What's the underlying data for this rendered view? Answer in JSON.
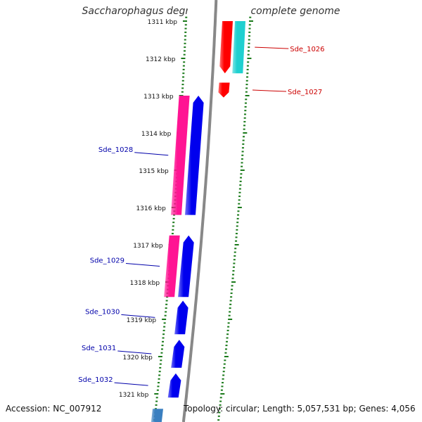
{
  "title": "Saccharophagus degradans 2-40, complete genome",
  "accession": "Accession: NC_007912",
  "topology": "Topology: circular; Length: 5,057,531 bp; Genes: 4,056",
  "ruler_unit": "kbp",
  "ruler": [
    {
      "kbp": 1311,
      "label": "1311 kbp"
    },
    {
      "kbp": 1312,
      "label": "1312 kbp"
    },
    {
      "kbp": 1313,
      "label": "1313 kbp"
    },
    {
      "kbp": 1314,
      "label": "1314 kbp"
    },
    {
      "kbp": 1315,
      "label": "1315 kbp"
    },
    {
      "kbp": 1316,
      "label": "1316 kbp"
    },
    {
      "kbp": 1317,
      "label": "1317 kbp"
    },
    {
      "kbp": 1318,
      "label": "1318 kbp"
    },
    {
      "kbp": 1319,
      "label": "1319 kbp"
    },
    {
      "kbp": 1320,
      "label": "1320 kbp"
    },
    {
      "kbp": 1321,
      "label": "1321 kbp"
    }
  ],
  "colors": {
    "outer_gene": "#ff0000",
    "outer_label": "#cc0000",
    "outer_feature": "#1fd0d0",
    "inner_gene": "#0000ee",
    "inner_label": "#0000aa",
    "inner_feature": "#ff1493",
    "inner_feature2": "#3a7fc0",
    "tick": "#1a7a1a",
    "backbone": "#888888"
  },
  "genes": [
    {
      "label": "Sde_1026",
      "strand": "outer",
      "start_kbp": 1311.0,
      "end_kbp": 1312.4
    },
    {
      "label": "Sde_1027",
      "strand": "outer",
      "start_kbp": 1312.65,
      "end_kbp": 1313.05
    },
    {
      "label": "Sde_1028",
      "strand": "inner",
      "start_kbp": 1313.0,
      "end_kbp": 1316.2
    },
    {
      "label": "Sde_1029",
      "strand": "inner",
      "start_kbp": 1316.75,
      "end_kbp": 1318.4
    },
    {
      "label": "Sde_1030",
      "strand": "inner",
      "start_kbp": 1318.5,
      "end_kbp": 1319.4
    },
    {
      "label": "Sde_1031",
      "strand": "inner",
      "start_kbp": 1319.55,
      "end_kbp": 1320.3
    },
    {
      "label": "Sde_1032",
      "strand": "inner",
      "start_kbp": 1320.45,
      "end_kbp": 1321.1
    }
  ],
  "features": [
    {
      "strand": "outer",
      "start_kbp": 1311.0,
      "end_kbp": 1312.4,
      "color": "outer_feature"
    },
    {
      "strand": "inner",
      "start_kbp": 1313.0,
      "end_kbp": 1316.2,
      "color": "inner_feature"
    },
    {
      "strand": "inner",
      "start_kbp": 1316.75,
      "end_kbp": 1318.4,
      "color": "inner_feature"
    },
    {
      "strand": "inner",
      "start_kbp": 1321.4,
      "end_kbp": 1321.8,
      "color": "inner_feature2"
    }
  ]
}
